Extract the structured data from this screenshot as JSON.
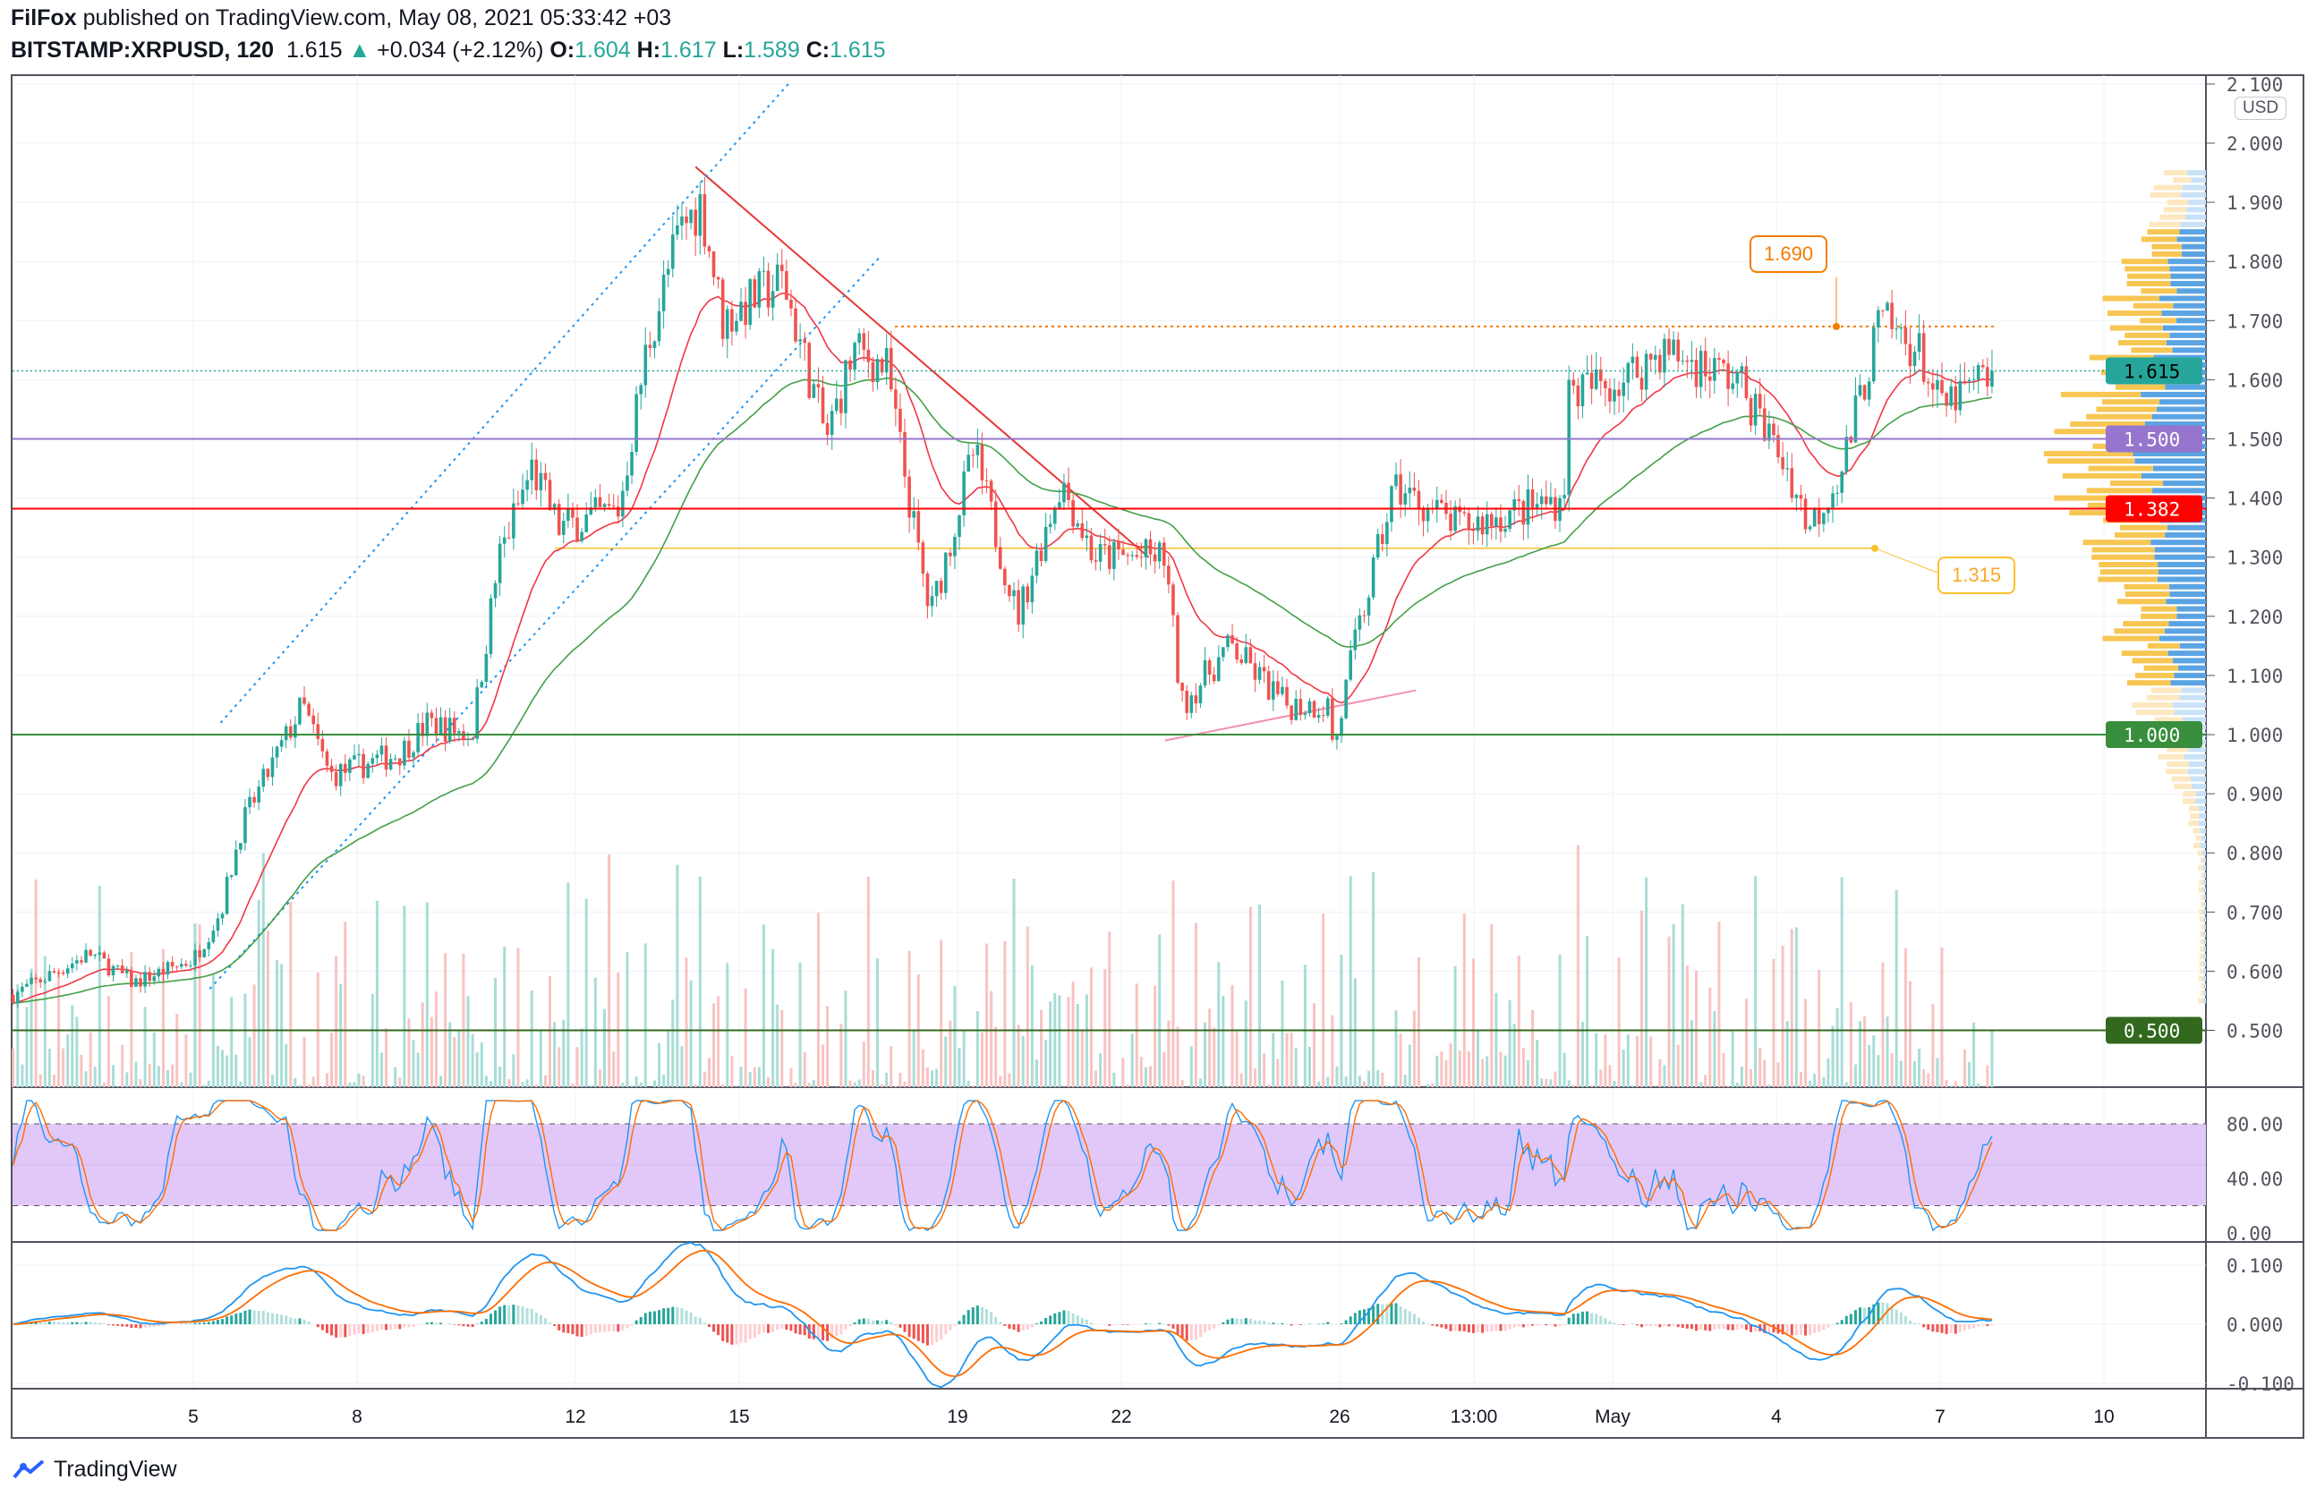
{
  "header": {
    "author": "FilFox",
    "published": "published on TradingView.com, May 08, 2021 05:33:42 +03",
    "symbol": "BITSTAMP:XRPUSD, 120",
    "last": "1.615",
    "change": "+0.034 (+2.12%)",
    "o_label": "O:",
    "o": "1.604",
    "h_label": "H:",
    "h": "1.617",
    "l_label": "L:",
    "l": "1.589",
    "c_label": "C:",
    "c": "1.615"
  },
  "currency": "USD",
  "footer": {
    "brand": "TradingView"
  },
  "colors": {
    "up": "#26a69a",
    "down": "#ef5350",
    "ema_fast": "#f23645",
    "ema_slow": "#43a047",
    "rsi_fill": "#e1c8f8"
  },
  "callouts": [
    {
      "label": "1.690",
      "price": 1.69,
      "color": "#f57c00"
    },
    {
      "label": "1.315",
      "price": 1.315,
      "color": "#fbc02d"
    }
  ],
  "chart_data": {
    "type": "candlestick",
    "symbol": "XRPUSD",
    "interval": "120",
    "price_axis": {
      "min": 0.5,
      "max": 2.1,
      "ticks": [
        "2.100",
        "2.000",
        "1.900",
        "1.800",
        "1.700",
        "1.600",
        "1.500",
        "1.400",
        "1.300",
        "1.200",
        "1.100",
        "1.000",
        "0.900",
        "0.800",
        "0.700",
        "0.600",
        "0.500"
      ]
    },
    "time_ticks": [
      {
        "label": "5",
        "day": 5
      },
      {
        "label": "8",
        "day": 8
      },
      {
        "label": "12",
        "day": 12
      },
      {
        "label": "15",
        "day": 15
      },
      {
        "label": "19",
        "day": 19
      },
      {
        "label": "22",
        "day": 22
      },
      {
        "label": "26",
        "day": 26
      },
      {
        "label": "13:00",
        "day": 28.46
      },
      {
        "label": "May",
        "day": 31
      },
      {
        "label": "4",
        "day": 34
      },
      {
        "label": "7",
        "day": 37
      },
      {
        "label": "10",
        "day": 40
      }
    ],
    "close_path": [
      [
        1.7,
        0.56
      ],
      [
        3.1,
        0.63
      ],
      [
        3.9,
        0.58
      ],
      [
        5.0,
        0.62
      ],
      [
        5.5,
        0.7
      ],
      [
        5.9,
        0.85
      ],
      [
        7.0,
        1.05
      ],
      [
        7.5,
        0.93
      ],
      [
        8.8,
        0.97
      ],
      [
        9.3,
        1.02
      ],
      [
        10.1,
        1.0
      ],
      [
        10.6,
        1.3
      ],
      [
        11.2,
        1.45
      ],
      [
        11.7,
        1.35
      ],
      [
        12.8,
        1.38
      ],
      [
        13.3,
        1.65
      ],
      [
        13.9,
        1.85
      ],
      [
        14.3,
        1.9
      ],
      [
        14.7,
        1.7
      ],
      [
        15.8,
        1.77
      ],
      [
        16.6,
        1.5
      ],
      [
        17.1,
        1.65
      ],
      [
        17.7,
        1.62
      ],
      [
        18.2,
        1.35
      ],
      [
        18.5,
        1.2
      ],
      [
        19.3,
        1.48
      ],
      [
        20.1,
        1.2
      ],
      [
        20.9,
        1.43
      ],
      [
        21.5,
        1.3
      ],
      [
        22.8,
        1.3
      ],
      [
        23.1,
        1.05
      ],
      [
        24.0,
        1.15
      ],
      [
        25.0,
        1.05
      ],
      [
        25.8,
        1.05
      ],
      [
        25.9,
        0.97
      ],
      [
        26.2,
        1.12
      ],
      [
        27.0,
        1.42
      ],
      [
        28.2,
        1.35
      ],
      [
        30.1,
        1.4
      ],
      [
        30.2,
        1.58
      ],
      [
        31.2,
        1.6
      ],
      [
        31.9,
        1.65
      ],
      [
        33.3,
        1.6
      ],
      [
        34.2,
        1.45
      ],
      [
        34.6,
        1.35
      ],
      [
        35.2,
        1.45
      ],
      [
        35.9,
        1.7
      ],
      [
        36.6,
        1.65
      ],
      [
        37.0,
        1.55
      ],
      [
        38.0,
        1.615
      ]
    ],
    "horizontal_levels": [
      {
        "price": 1.615,
        "label": "1.615",
        "color": "#26a69a",
        "style": "dotted"
      },
      {
        "price": 1.5,
        "label": "1.500",
        "color": "#9575cd",
        "style": "solid"
      },
      {
        "price": 1.382,
        "label": "1.382",
        "color": "#ff0000",
        "style": "solid"
      },
      {
        "price": 1.0,
        "label": "1.000",
        "color": "#388e3c",
        "style": "solid"
      },
      {
        "price": 0.5,
        "label": "0.500",
        "color": "#33691e",
        "style": "solid"
      }
    ],
    "trendlines": [
      {
        "name": "downtrend",
        "from": [
          14.2,
          1.96
        ],
        "to": [
          22.5,
          1.3
        ],
        "color": "#e53935"
      },
      {
        "name": "channel-upper",
        "from": [
          5.5,
          1.02
        ],
        "to": [
          15.9,
          2.1
        ],
        "color": "#2196f3"
      },
      {
        "name": "channel-lower",
        "from": [
          5.3,
          0.57
        ],
        "to": [
          17.6,
          1.81
        ],
        "color": "#2196f3"
      },
      {
        "name": "support-pink",
        "from": [
          22.8,
          0.99
        ],
        "to": [
          27.4,
          1.075
        ],
        "color": "#f48fb1"
      }
    ],
    "rsi_axis": {
      "ticks": [
        "80.00",
        "40.00",
        "0.00"
      ],
      "band": [
        20,
        80
      ]
    },
    "macd_axis": {
      "ticks": [
        "0.100",
        "0.000",
        "-0.100"
      ]
    }
  }
}
